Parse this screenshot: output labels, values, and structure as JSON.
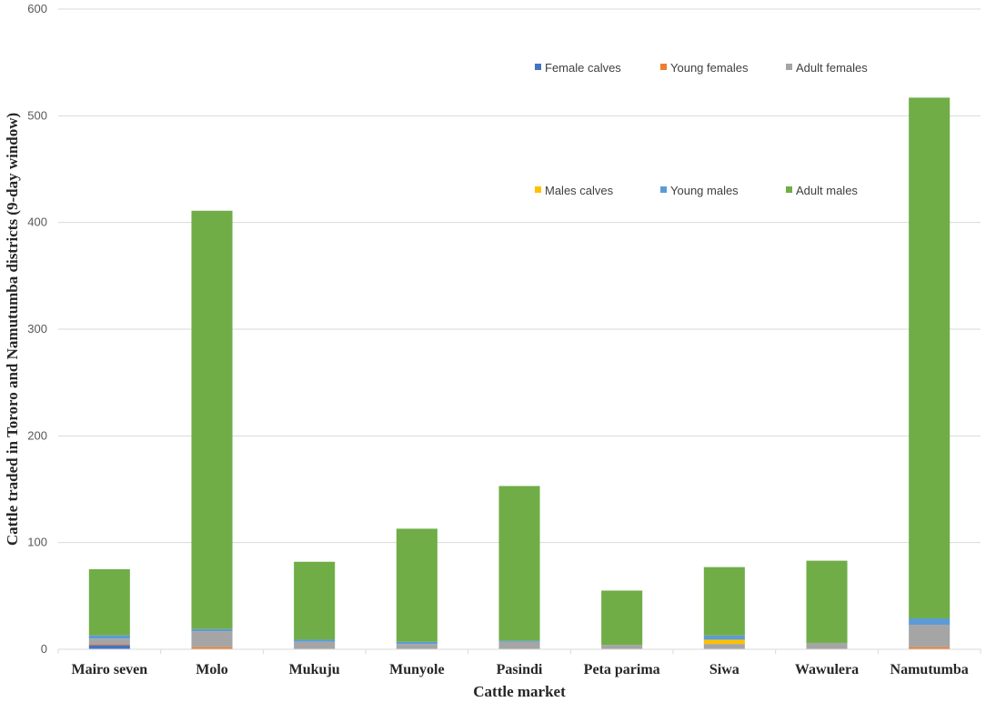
{
  "chart_data": {
    "type": "bar",
    "stacked": true,
    "title": "",
    "xlabel": "Cattle market",
    "ylabel": "Cattle traded in Tororo and Namutumba districts (9-day window)",
    "ylim": [
      0,
      600
    ],
    "yticks": [
      0,
      100,
      200,
      300,
      400,
      500,
      600
    ],
    "grid": true,
    "legend_position": "top-right",
    "categories": [
      "Mairo seven",
      "Molo",
      "Mukuju",
      "Munyole",
      "Pasindi",
      "Peta parima",
      "Siwa",
      "Wawulera",
      "Namutumba"
    ],
    "series": [
      {
        "name": "Female calves",
        "color": "#4472c4",
        "values": [
          4,
          0,
          0,
          0,
          0,
          0,
          0,
          0,
          0
        ]
      },
      {
        "name": "Young females",
        "color": "#ed7d31",
        "values": [
          1,
          2,
          0,
          0,
          0,
          0,
          0,
          0,
          2
        ]
      },
      {
        "name": "Adult females",
        "color": "#a5a5a5",
        "values": [
          5,
          15,
          7,
          5,
          7,
          4,
          5,
          6,
          21
        ]
      },
      {
        "name": "Males calves",
        "color": "#ffc000",
        "values": [
          0,
          0,
          0,
          0,
          0,
          0,
          4,
          0,
          0
        ]
      },
      {
        "name": "Young males",
        "color": "#5b9bd5",
        "values": [
          3,
          2,
          2,
          2,
          1,
          0,
          4,
          0,
          6
        ]
      },
      {
        "name": "Adult males",
        "color": "#70ad47",
        "values": [
          62,
          392,
          73,
          106,
          145,
          51,
          64,
          77,
          488
        ]
      }
    ]
  }
}
